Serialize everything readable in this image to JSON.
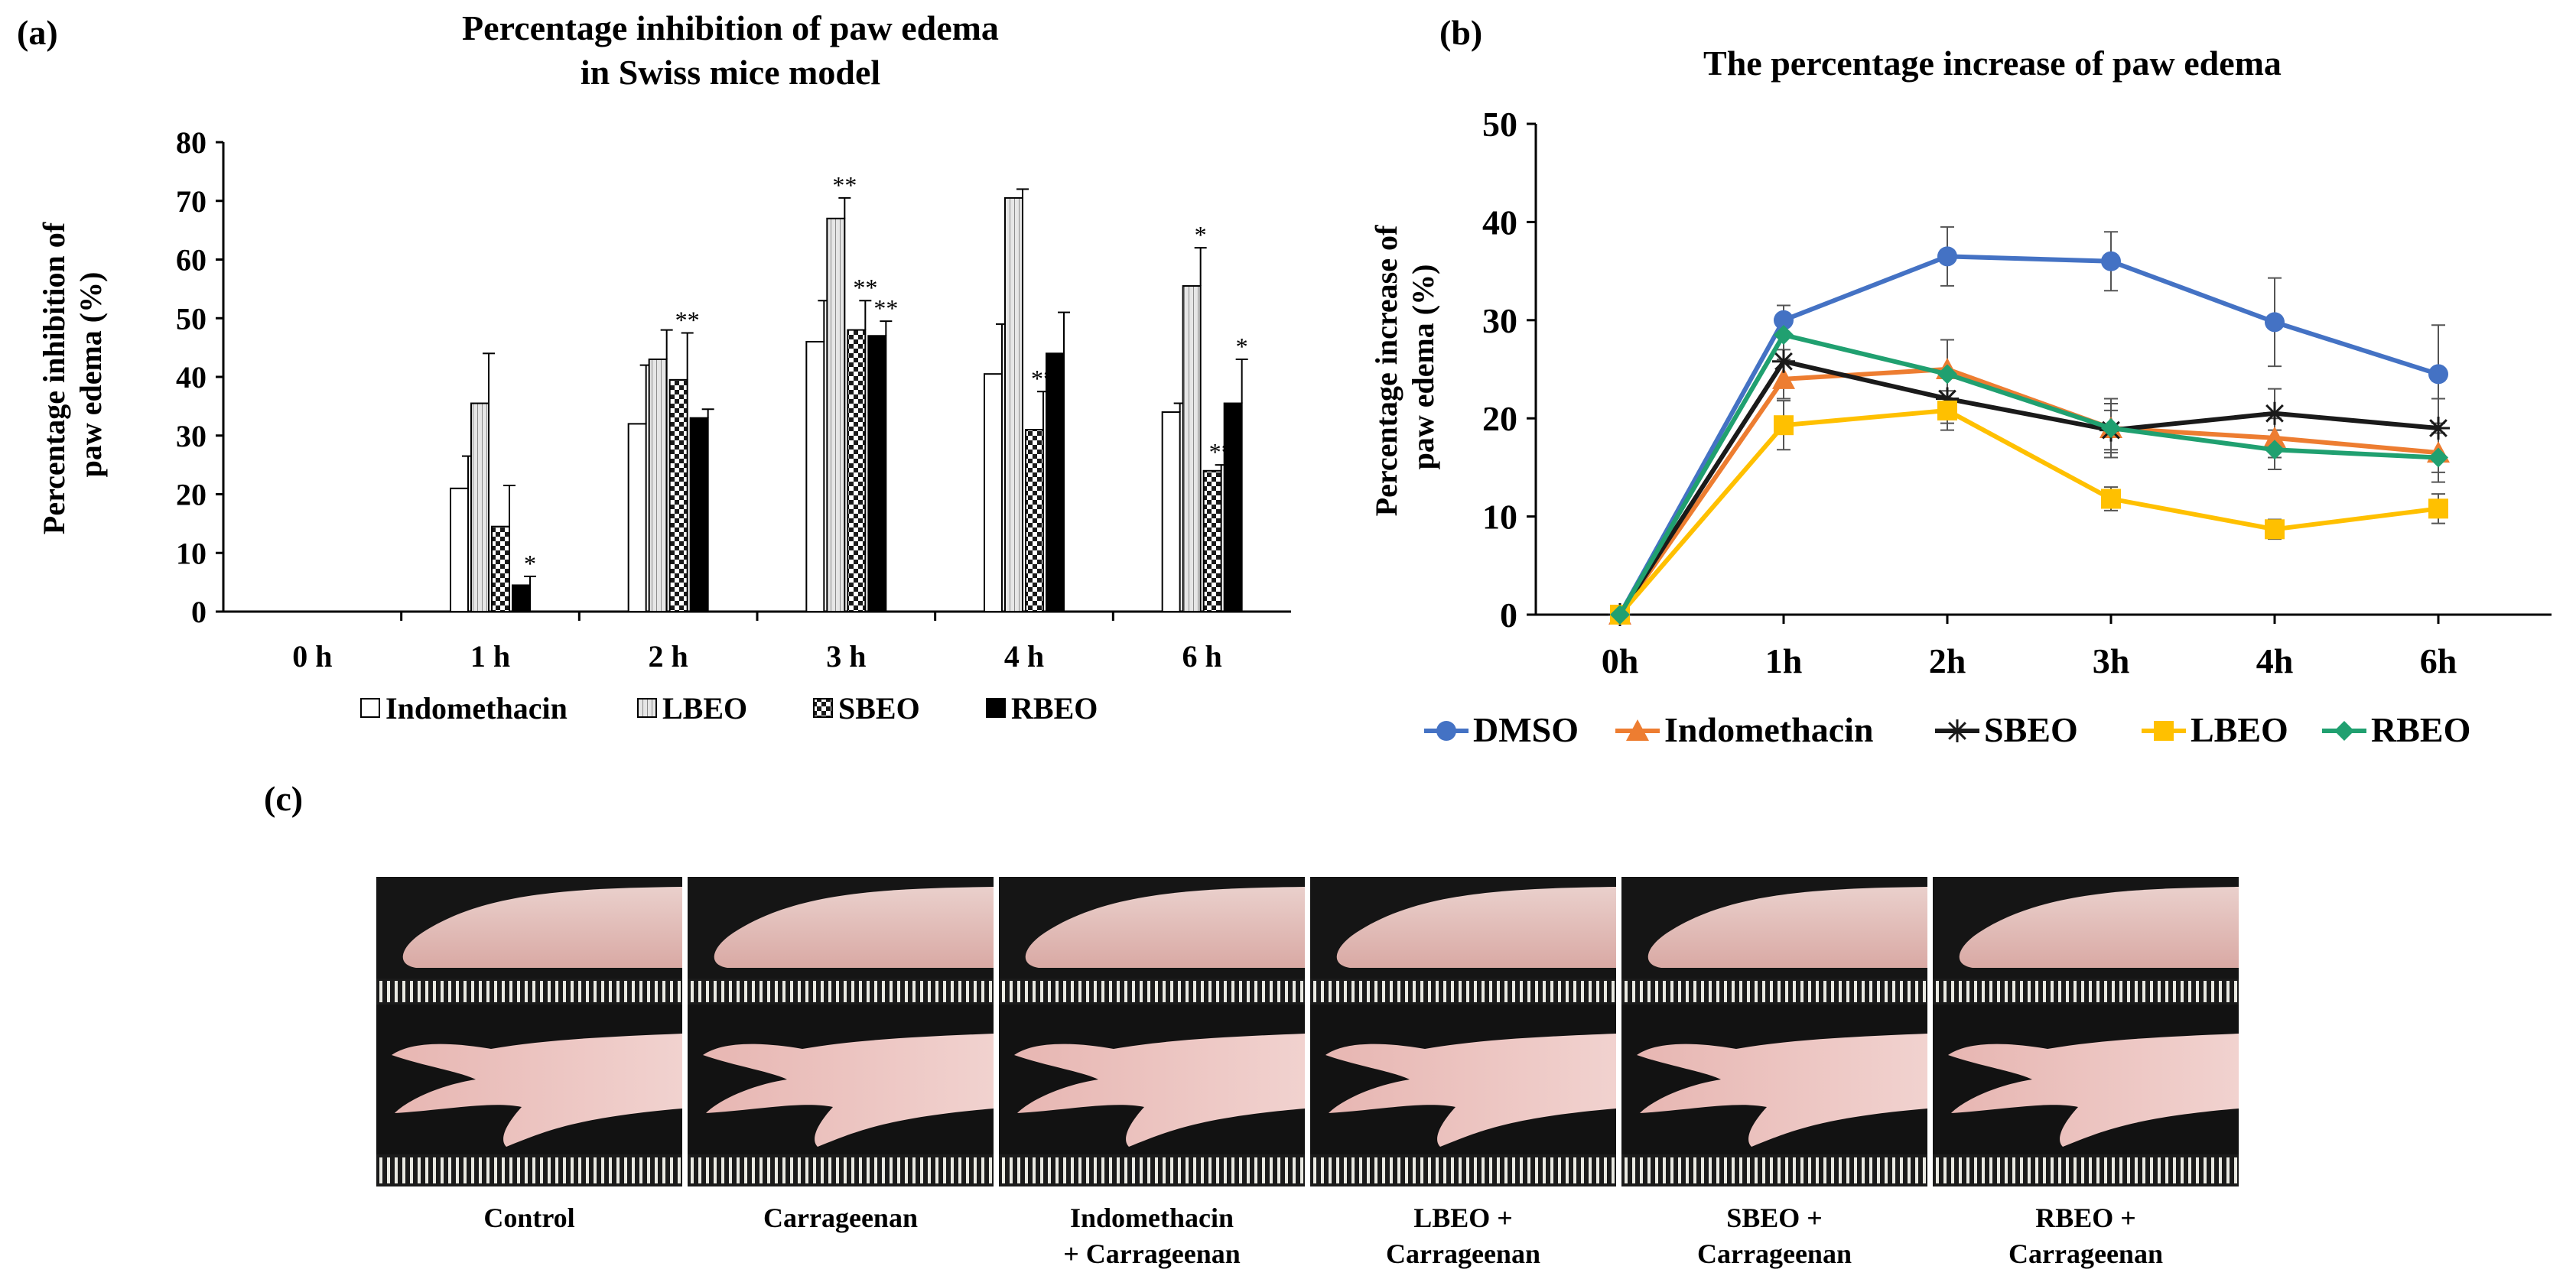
{
  "panels": {
    "a": {
      "label": "(a)"
    },
    "b": {
      "label": "(b)"
    },
    "c": {
      "label": "(c)"
    }
  },
  "chart_data": [
    {
      "id": "a",
      "type": "bar",
      "title": "Percentage inhibition of paw edema",
      "subtitle": "in Swiss mice model",
      "xlabel": "",
      "ylabel_lines": [
        "Percentage inhibition of",
        "paw edema (%)"
      ],
      "ylim": [
        0,
        80
      ],
      "yticks": [
        0,
        10,
        20,
        30,
        40,
        50,
        60,
        70,
        80
      ],
      "categories": [
        "0 h",
        "1  h",
        "2 h",
        "3 h",
        "4 h",
        "6 h"
      ],
      "legend_position": "bottom",
      "series": [
        {
          "name": "Indomethacin",
          "pattern": "white",
          "values": [
            0,
            21,
            32,
            46,
            40.5,
            34
          ],
          "errors": [
            0,
            5.5,
            10,
            7,
            8.5,
            1.5
          ],
          "sig": [
            "",
            "",
            "",
            "",
            "",
            ""
          ]
        },
        {
          "name": "LBEO",
          "pattern": "gray-lines",
          "values": [
            0,
            35.5,
            43,
            67,
            70.5,
            55.5
          ],
          "errors": [
            0,
            8.5,
            5,
            3.5,
            1.5,
            6.5
          ],
          "sig": [
            "",
            "",
            "",
            "**",
            "",
            "*"
          ]
        },
        {
          "name": "SBEO",
          "pattern": "checker",
          "values": [
            0,
            14.5,
            39.5,
            48,
            31,
            24
          ],
          "errors": [
            0,
            7,
            8,
            5,
            6.5,
            1
          ],
          "sig": [
            "",
            "",
            "**",
            "**",
            "**",
            "**"
          ]
        },
        {
          "name": "RBEO",
          "pattern": "black",
          "values": [
            0,
            4.5,
            33,
            47,
            44,
            35.5
          ],
          "errors": [
            0,
            1.5,
            1.5,
            2.5,
            7,
            7.5
          ],
          "sig": [
            "",
            "*",
            "",
            "**",
            "",
            "*"
          ]
        }
      ]
    },
    {
      "id": "b",
      "type": "line",
      "title": "The percentage increase of paw edema",
      "xlabel": "",
      "ylabel_lines": [
        "Percentage increase of",
        "paw edema (%)"
      ],
      "ylim": [
        0,
        50
      ],
      "yticks": [
        0,
        10,
        20,
        30,
        40,
        50
      ],
      "x": [
        "0h",
        "1h",
        "2h",
        "3h",
        "4h",
        "6h"
      ],
      "legend_position": "bottom",
      "series": [
        {
          "name": "DMSO",
          "color": "#4472C4",
          "marker": "circle",
          "values": [
            0,
            30,
            36.5,
            36,
            29.8,
            24.5
          ],
          "errors": [
            0,
            1.5,
            3,
            3,
            4.5,
            5
          ]
        },
        {
          "name": "Indomethacin",
          "color": "#ED7D31",
          "marker": "triangle",
          "values": [
            0,
            24,
            25,
            19,
            18,
            16.5
          ],
          "errors": [
            0,
            2,
            3,
            2.5,
            2,
            2
          ]
        },
        {
          "name": "SBEO",
          "color": "#1a1a1a",
          "marker": "star",
          "values": [
            0,
            25.8,
            22,
            18.8,
            20.5,
            19
          ],
          "errors": [
            0,
            2.5,
            2.5,
            2,
            2.5,
            3
          ]
        },
        {
          "name": "LBEO",
          "color": "#FFC000",
          "marker": "square",
          "values": [
            0,
            19.3,
            20.8,
            11.8,
            8.7,
            10.8
          ],
          "errors": [
            0,
            2.5,
            2,
            1.2,
            1,
            1.5
          ]
        },
        {
          "name": "RBEO",
          "color": "#20A070",
          "marker": "diamond",
          "values": [
            0,
            28.5,
            24.5,
            19,
            16.8,
            16
          ],
          "errors": [
            0,
            1.5,
            3.5,
            3,
            2,
            2.5
          ]
        }
      ]
    }
  ],
  "photos": {
    "captions": [
      {
        "line1": "Control",
        "line2": ""
      },
      {
        "line1": "Carrageenan",
        "line2": ""
      },
      {
        "line1": "Indomethacin",
        "line2": "+ Carrageenan"
      },
      {
        "line1": "LBEO +",
        "line2": "Carrageenan"
      },
      {
        "line1": "SBEO +",
        "line2": "Carrageenan"
      },
      {
        "line1": "RBEO +",
        "line2": "Carrageenan"
      }
    ]
  }
}
